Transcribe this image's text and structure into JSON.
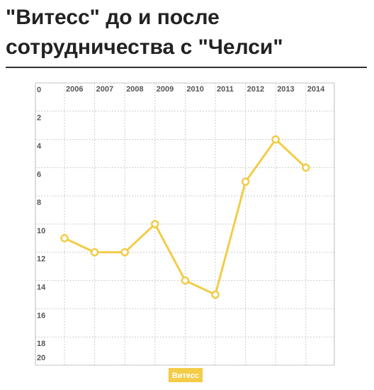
{
  "chart_data": {
    "type": "line",
    "title": "\"Витесс\" до и после сотрудничества с \"Челси\"",
    "categories": [
      "2006",
      "2007",
      "2008",
      "2009",
      "2010",
      "2011",
      "2012",
      "2013",
      "2014"
    ],
    "series": [
      {
        "name": "Витесс",
        "color": "#f3cc48",
        "values": [
          11,
          12,
          12,
          10,
          14,
          15,
          7,
          4,
          6
        ]
      }
    ],
    "ylim": [
      0,
      20
    ],
    "yticks": [
      0,
      2,
      4,
      6,
      8,
      10,
      12,
      14,
      16,
      18,
      20
    ],
    "y_inverted": true,
    "grid": true
  }
}
